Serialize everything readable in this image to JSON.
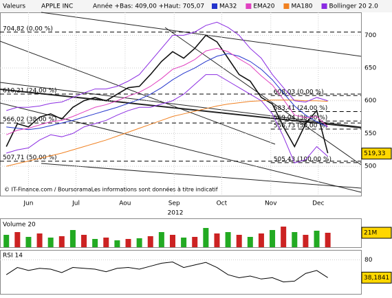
{
  "header": {
    "label": "Valeurs",
    "name": "APPLE INC",
    "range": "Année +Bas: 409,00 +Haut: 705,07"
  },
  "footer": "© IT-Finance.com / BoursoramaLes informations sont données à titre indicatif",
  "chart_data": [
    {
      "type": "line",
      "x_label": "2012",
      "xlim": [
        -18,
        210
      ],
      "xticks": [
        {
          "value": 0,
          "label": "Jun"
        },
        {
          "value": 30,
          "label": "Jul"
        },
        {
          "value": 61,
          "label": "Aou"
        },
        {
          "value": 92,
          "label": "Sep"
        },
        {
          "value": 122,
          "label": "Oct"
        },
        {
          "value": 153,
          "label": "Nov"
        },
        {
          "value": 183,
          "label": "Dec"
        }
      ],
      "ylim": [
        455,
        735
      ],
      "yticks": [
        500,
        550,
        600,
        650,
        700
      ],
      "grid": true,
      "x": [
        -14,
        -7,
        0,
        7,
        14,
        21,
        28,
        35,
        42,
        49,
        56,
        63,
        70,
        77,
        84,
        91,
        98,
        105,
        112,
        119,
        126,
        133,
        140,
        147,
        154,
        161,
        168,
        175,
        182,
        189
      ],
      "series": [
        {
          "name": "APPLE INC",
          "color": "#111111",
          "values": [
            530,
            565,
            560,
            575,
            580,
            572,
            590,
            600,
            605,
            600,
            610,
            620,
            622,
            640,
            660,
            675,
            665,
            680,
            700,
            690,
            665,
            640,
            630,
            605,
            595,
            560,
            530,
            565,
            585,
            520
          ]
        },
        {
          "name": "MA32",
          "color": "#2233cc",
          "values": [
            560,
            558,
            556,
            558,
            562,
            566,
            570,
            575,
            580,
            585,
            590,
            596,
            602,
            610,
            620,
            632,
            642,
            650,
            660,
            668,
            672,
            668,
            660,
            648,
            632,
            612,
            592,
            578,
            568,
            560
          ]
        },
        {
          "name": "EMA20",
          "color": "#e040c0",
          "values": [
            548,
            555,
            558,
            563,
            568,
            570,
            576,
            583,
            590,
            594,
            600,
            607,
            613,
            622,
            634,
            648,
            654,
            663,
            676,
            680,
            675,
            664,
            654,
            638,
            624,
            602,
            578,
            574,
            576,
            560
          ]
        },
        {
          "name": "MA180",
          "color": "#f08020",
          "values": [
            500,
            504,
            508,
            512,
            516,
            520,
            525,
            530,
            535,
            540,
            546,
            552,
            558,
            564,
            570,
            576,
            580,
            584,
            588,
            592,
            595,
            597,
            599,
            600,
            601,
            601,
            601,
            600,
            600,
            599
          ]
        },
        {
          "name": "Bollinger 20 2.0",
          "color": "#8a2be2",
          "values": [
            585,
            590,
            590,
            592,
            596,
            598,
            605,
            612,
            618,
            618,
            622,
            630,
            640,
            660,
            680,
            700,
            700,
            705,
            715,
            720,
            712,
            700,
            680,
            665,
            640,
            620,
            600,
            598,
            605,
            600
          ]
        },
        {
          "color": "#8a2be2",
          "values": [
            520,
            525,
            528,
            540,
            548,
            545,
            550,
            560,
            565,
            570,
            578,
            585,
            590,
            590,
            595,
            600,
            610,
            625,
            640,
            640,
            630,
            620,
            610,
            600,
            580,
            545,
            505,
            510,
            530,
            515
          ]
        }
      ],
      "levels": [
        {
          "value": 704.82,
          "label": "704,82 (0,00 %)"
        },
        {
          "value": 610.21,
          "label": "610,21 (24,00 %)"
        },
        {
          "value": 566.02,
          "label": "566,02 (38,00 %)"
        },
        {
          "value": 507.71,
          "label": "507,71 (50,00 %)"
        }
      ],
      "levels_right": [
        {
          "value": 608.03,
          "label": "608,03 (0,00 %)"
        },
        {
          "value": 583.41,
          "label": "583,41 (24,00 %)"
        },
        {
          "value": 569.04,
          "label": "569,04 (38,00 %)"
        },
        {
          "value": 556.73,
          "label": "556,73 (50,00 %)"
        },
        {
          "value": 505.43,
          "label": "505,43 (100,00 %)"
        }
      ],
      "last": {
        "value": 519.33,
        "label": "519,33"
      }
    },
    {
      "type": "bar",
      "title": "Volume 20",
      "ylim": [
        0,
        40
      ],
      "yticks": [
        {
          "value": 21,
          "label": "21M"
        }
      ],
      "values": [
        18,
        22,
        15,
        20,
        14,
        16,
        25,
        18,
        12,
        14,
        10,
        12,
        13,
        16,
        22,
        18,
        14,
        15,
        28,
        20,
        22,
        18,
        15,
        20,
        25,
        30,
        22,
        18,
        24,
        21
      ]
    },
    {
      "type": "line",
      "title": "RSI 14",
      "ylim": [
        0,
        100
      ],
      "yticks": [
        80
      ],
      "series": [
        {
          "color": "#000000",
          "values": [
            45,
            62,
            55,
            60,
            58,
            50,
            62,
            60,
            58,
            52,
            60,
            62,
            58,
            65,
            72,
            75,
            62,
            68,
            74,
            62,
            45,
            38,
            42,
            35,
            38,
            28,
            30,
            48,
            55,
            38.1841
          ]
        }
      ],
      "last": {
        "value": 38.1841,
        "label": "38,1841"
      }
    }
  ]
}
